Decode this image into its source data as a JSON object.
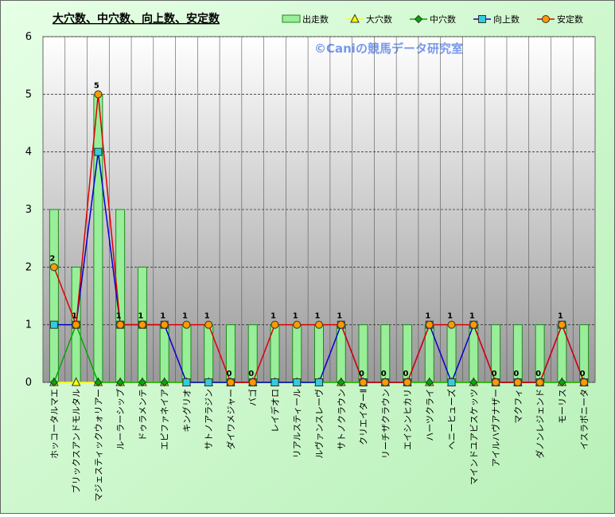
{
  "chart_data": {
    "type": "bar-line",
    "title": "大穴数、中穴数、向上数、安定数",
    "watermark": "©Caniの競馬データ研究室",
    "categories": [
      "ホッコータルマエ",
      "ブリックスアンドモルタル",
      "マジェスティックウォリアー",
      "ルーラーシップ",
      "ドゥラメンテ",
      "エピファネイア",
      "キングリオ",
      "サトノアラジン",
      "ダイワメジャー",
      "バゴ",
      "レイデオロ",
      "リアルスティール",
      "ルヴァンスレーヴ",
      "サトノクラウン",
      "クリエイターⅡ",
      "リーチザクラウン",
      "エイシンヒカリ",
      "ハーツクライ",
      "ヘニーヒューズ",
      "マインドユアビスケッツ",
      "アイルハヴアナザー",
      "マクフィ",
      "ダノンレジェンド",
      "モーリス",
      "イスラボニータ"
    ],
    "series": [
      {
        "name": "出走数",
        "type": "bar",
        "color": "#99ee99",
        "values": [
          3,
          2,
          5,
          3,
          2,
          1,
          1,
          1,
          1,
          1,
          1,
          1,
          1,
          1,
          1,
          1,
          1,
          1,
          1,
          1,
          1,
          1,
          1,
          1,
          1
        ]
      },
      {
        "name": "大穴数",
        "type": "line",
        "marker": "triangle",
        "color": "#ffff00",
        "values": [
          0,
          0,
          0,
          0,
          0,
          0,
          0,
          0,
          0,
          0,
          0,
          0,
          0,
          0,
          0,
          0,
          0,
          0,
          0,
          0,
          0,
          0,
          0,
          0,
          0
        ]
      },
      {
        "name": "中穴数",
        "type": "line",
        "marker": "diamond",
        "color": "#00aa00",
        "values": [
          0,
          1,
          0,
          0,
          0,
          0,
          0,
          0,
          0,
          0,
          0,
          0,
          0,
          0,
          0,
          0,
          0,
          0,
          0,
          0,
          0,
          0,
          0,
          0,
          0
        ]
      },
      {
        "name": "向上数",
        "type": "line",
        "marker": "square",
        "color": "#0000cc",
        "values": [
          1,
          1,
          4,
          1,
          1,
          1,
          0,
          0,
          0,
          0,
          0,
          0,
          0,
          1,
          0,
          0,
          0,
          1,
          0,
          1,
          0,
          0,
          0,
          1,
          0
        ]
      },
      {
        "name": "安定数",
        "type": "line",
        "marker": "circle",
        "color": "#dd0000",
        "values": [
          2,
          1,
          5,
          1,
          1,
          1,
          1,
          1,
          0,
          0,
          1,
          1,
          1,
          1,
          0,
          0,
          0,
          1,
          1,
          1,
          0,
          0,
          0,
          1,
          0
        ],
        "labels": true
      }
    ],
    "ylim": [
      0,
      6
    ],
    "yticks": [
      0,
      1,
      2,
      3,
      4,
      5,
      6
    ],
    "grid": true,
    "legend": "top-right"
  }
}
